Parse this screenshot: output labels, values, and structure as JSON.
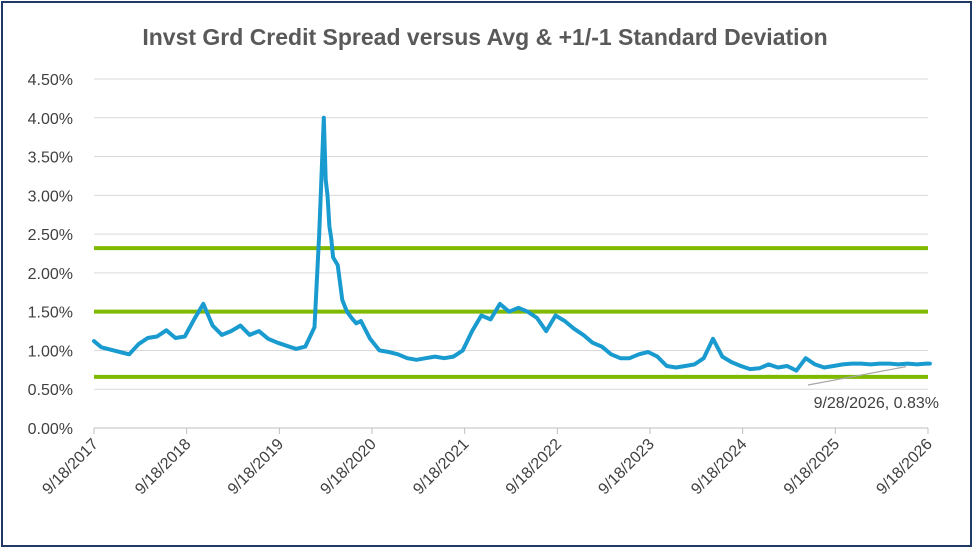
{
  "chart_data": {
    "type": "line",
    "title": "Invst Grd Credit Spread versus Avg & +1/-1 Standard Deviation",
    "xlabel": "",
    "ylabel": "",
    "ylim": [
      0,
      0.045
    ],
    "yticks": [
      "0.00%",
      "0.50%",
      "1.00%",
      "1.50%",
      "2.00%",
      "2.50%",
      "3.00%",
      "3.50%",
      "4.00%",
      "4.50%"
    ],
    "xticks": [
      "9/18/2017",
      "9/18/2018",
      "9/18/2019",
      "9/18/2020",
      "9/18/2021",
      "9/18/2022",
      "9/18/2023",
      "9/18/2024",
      "9/18/2025",
      "9/18/2026"
    ],
    "grid": "horizontal",
    "reference_lines": [
      {
        "value": 0.0232,
        "color": "#7fba00"
      },
      {
        "value": 0.015,
        "color": "#7fba00"
      },
      {
        "value": 0.0066,
        "color": "#7fba00"
      }
    ],
    "series": [
      {
        "color": "#1a9bd0",
        "x": [
          2017.72,
          2017.8,
          2017.9,
          2018.0,
          2018.1,
          2018.2,
          2018.3,
          2018.4,
          2018.5,
          2018.6,
          2018.7,
          2018.8,
          2018.9,
          2019.0,
          2019.1,
          2019.2,
          2019.3,
          2019.4,
          2019.5,
          2019.6,
          2019.7,
          2019.8,
          2019.9,
          2020.0,
          2020.1,
          2020.15,
          2020.2,
          2020.22,
          2020.24,
          2020.26,
          2020.28,
          2020.3,
          2020.35,
          2020.4,
          2020.45,
          2020.5,
          2020.55,
          2020.6,
          2020.7,
          2020.8,
          2020.9,
          2021.0,
          2021.1,
          2021.2,
          2021.3,
          2021.4,
          2021.5,
          2021.6,
          2021.7,
          2021.8,
          2021.9,
          2022.0,
          2022.1,
          2022.2,
          2022.3,
          2022.4,
          2022.5,
          2022.6,
          2022.7,
          2022.8,
          2022.9,
          2023.0,
          2023.1,
          2023.2,
          2023.3,
          2023.4,
          2023.5,
          2023.6,
          2023.7,
          2023.8,
          2023.9,
          2024.0,
          2024.1,
          2024.2,
          2024.3,
          2024.4,
          2024.5,
          2024.6,
          2024.7,
          2024.8,
          2024.9,
          2025.0,
          2025.1,
          2025.2,
          2025.3,
          2025.4,
          2025.5,
          2025.6,
          2025.7,
          2025.8,
          2025.9,
          2026.0,
          2026.1,
          2026.2,
          2026.3,
          2026.4,
          2026.5,
          2026.6,
          2026.7,
          2026.74
        ],
        "values": [
          0.0112,
          0.0104,
          0.0101,
          0.0098,
          0.0095,
          0.0108,
          0.0116,
          0.0118,
          0.0126,
          0.0116,
          0.0118,
          0.014,
          0.016,
          0.0132,
          0.012,
          0.0125,
          0.0132,
          0.012,
          0.0125,
          0.0115,
          0.011,
          0.0106,
          0.0102,
          0.0105,
          0.013,
          0.025,
          0.04,
          0.032,
          0.03,
          0.026,
          0.0245,
          0.022,
          0.021,
          0.0165,
          0.015,
          0.0142,
          0.0135,
          0.0138,
          0.0115,
          0.01,
          0.0098,
          0.0095,
          0.009,
          0.0088,
          0.009,
          0.0092,
          0.009,
          0.0092,
          0.01,
          0.0125,
          0.0145,
          0.014,
          0.016,
          0.015,
          0.0155,
          0.015,
          0.0142,
          0.0125,
          0.0145,
          0.0138,
          0.0128,
          0.012,
          0.011,
          0.0105,
          0.0095,
          0.009,
          0.009,
          0.0095,
          0.0098,
          0.0092,
          0.008,
          0.0078,
          0.008,
          0.0082,
          0.009,
          0.0115,
          0.0092,
          0.0085,
          0.008,
          0.0076,
          0.0077,
          0.0082,
          0.0078,
          0.008,
          0.0074,
          0.009,
          0.0082,
          0.0078,
          0.008,
          0.0082,
          0.0083,
          0.0083,
          0.0082,
          0.0083,
          0.0083,
          0.0082,
          0.0083,
          0.0082,
          0.0083,
          0.0083
        ]
      }
    ],
    "annotation": {
      "label": "9/28/2026, 0.83%",
      "x": 2026.74,
      "y": 0.0083
    }
  }
}
